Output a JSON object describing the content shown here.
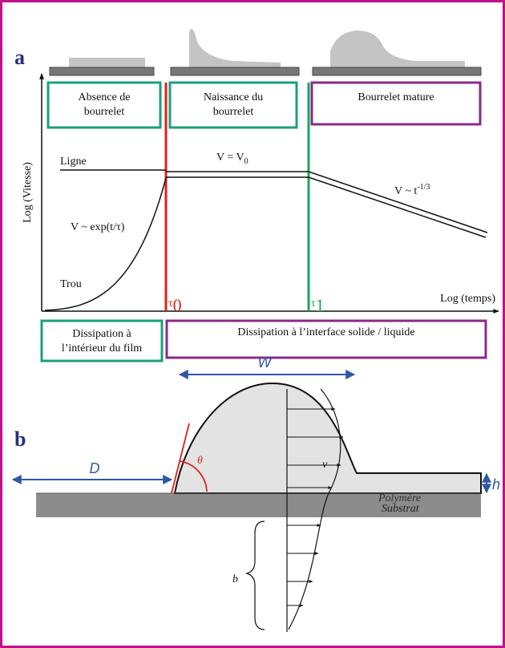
{
  "panel_a": {
    "label": "a",
    "stages": [
      {
        "lines": [
          "Absence de",
          "bourrelet"
        ]
      },
      {
        "lines": [
          "Naissance du",
          "bourrelet"
        ]
      },
      {
        "lines": [
          "Bourrelet mature"
        ]
      }
    ],
    "y_axis_label": "Log (Vitesse)",
    "x_axis_label": "Log (temps)",
    "line_label": "Ligne",
    "hole_label": "Trou",
    "v_const": {
      "text": "V = V",
      "sub": "0"
    },
    "v_power": {
      "text": "V ~ t",
      "sup": "-1/3"
    },
    "v_exp": "V ~ exp(t/τ)",
    "tau0": {
      "text": "τ",
      "sub": "0"
    },
    "tau1": {
      "text": "τ",
      "sub": "1"
    },
    "dissipation": [
      {
        "lines": [
          "Dissipation à",
          "l’intérieur du film"
        ]
      },
      {
        "lines": [
          "Dissipation à l’interface solide / liquide"
        ]
      }
    ]
  },
  "panel_b": {
    "label": "b",
    "width_label": "W",
    "distance_label": "D",
    "angle_label": "θ",
    "velocity_label": "v",
    "height_label": "h",
    "polymer_label": "Polymère",
    "substrate_label": "Substrat",
    "slip_label": "b"
  }
}
